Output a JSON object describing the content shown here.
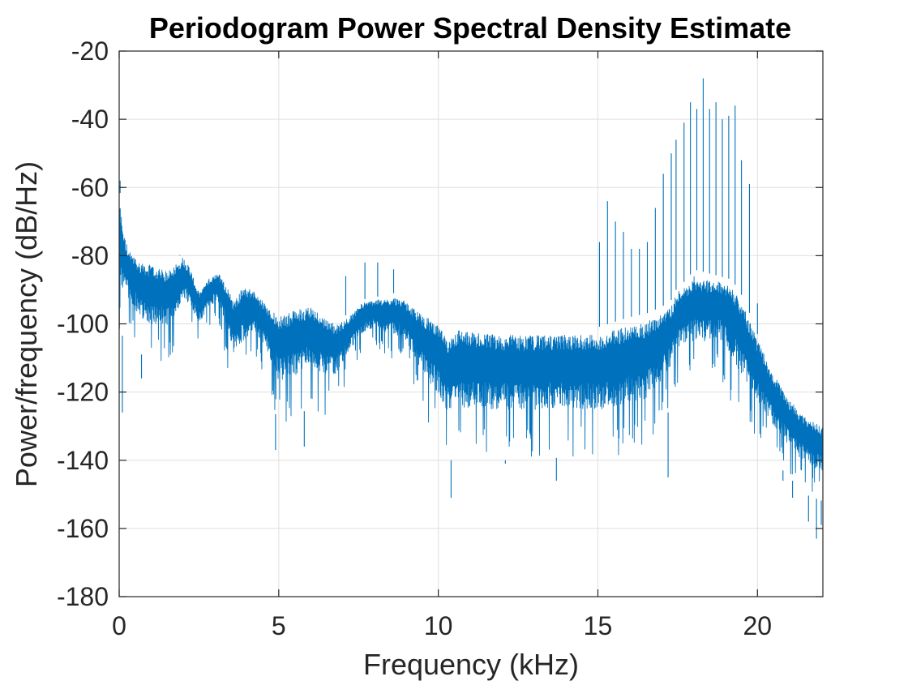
{
  "chart_data": {
    "type": "line",
    "title": "Periodogram Power Spectral Density Estimate",
    "xlabel": "Frequency (kHz)",
    "ylabel": "Power/frequency (dB/Hz)",
    "xlim": [
      0,
      22.05
    ],
    "ylim": [
      -180,
      -20
    ],
    "xticks": [
      0,
      5,
      10,
      15,
      20
    ],
    "xtick_labels": [
      "0",
      "5",
      "10",
      "15",
      "20"
    ],
    "yticks": [
      -180,
      -160,
      -140,
      -120,
      -100,
      -80,
      -60,
      -40,
      -20
    ],
    "ytick_labels": [
      "-180",
      "-160",
      "-140",
      "-120",
      "-100",
      "-80",
      "-60",
      "-40",
      "-20"
    ],
    "grid": true,
    "colors": {
      "series": "#0072BD",
      "axes": "#262626",
      "grid": "#dfdfdf"
    },
    "series": [
      {
        "envelope_x": [
          0,
          0.05,
          0.15,
          0.3,
          0.6,
          1.0,
          1.5,
          2.0,
          2.2,
          2.5,
          2.8,
          3.1,
          3.4,
          3.6,
          3.9,
          4.2,
          4.6,
          5.0,
          5.5,
          6.0,
          6.4,
          6.8,
          7.2,
          7.6,
          8.0,
          8.3,
          8.6,
          8.9,
          9.2,
          9.6,
          10.0,
          10.3,
          10.6,
          11.0,
          12.0,
          13.0,
          14.0,
          15.0,
          16.0,
          16.5,
          17.0,
          17.3,
          17.5,
          17.8,
          18.0,
          18.4,
          18.8,
          19.2,
          19.6,
          20.0,
          20.5,
          21.0,
          21.5,
          22.05
        ],
        "envelope_hi": [
          -58,
          -64,
          -72,
          -77,
          -80,
          -81,
          -83,
          -79,
          -82,
          -90,
          -86,
          -84,
          -88,
          -92,
          -87,
          -89,
          -93,
          -96,
          -94,
          -93,
          -96,
          -99,
          -97,
          -93,
          -92,
          -92,
          -91,
          -92,
          -94,
          -96,
          -98,
          -103,
          -99,
          -100,
          -101,
          -101,
          -101,
          -101,
          -98,
          -97,
          -95,
          -93,
          -89,
          -87,
          -84,
          -85,
          -86,
          -87,
          -93,
          -103,
          -113,
          -121,
          -126,
          -129
        ],
        "envelope_lo": [
          -132,
          -105,
          -102,
          -103,
          -108,
          -112,
          -112,
          -102,
          -101,
          -106,
          -101,
          -99,
          -113,
          -119,
          -116,
          -110,
          -116,
          -130,
          -128,
          -124,
          -127,
          -124,
          -115,
          -109,
          -107,
          -109,
          -111,
          -110,
          -118,
          -128,
          -134,
          -140,
          -140,
          -140,
          -140,
          -140,
          -139,
          -140,
          -139,
          -137,
          -130,
          -124,
          -118,
          -117,
          -118,
          -118,
          -115,
          -124,
          -131,
          -134,
          -140,
          -145,
          -150,
          -152
        ],
        "peaks": [
          {
            "x": 0.03,
            "y": -58
          },
          {
            "x": 1.9,
            "y": -80
          },
          {
            "x": 7.1,
            "y": -86
          },
          {
            "x": 7.7,
            "y": -82
          },
          {
            "x": 8.1,
            "y": -82
          },
          {
            "x": 8.6,
            "y": -84
          },
          {
            "x": 15.05,
            "y": -76
          },
          {
            "x": 15.3,
            "y": -64
          },
          {
            "x": 15.55,
            "y": -70
          },
          {
            "x": 15.8,
            "y": -73
          },
          {
            "x": 16.05,
            "y": -78
          },
          {
            "x": 16.3,
            "y": -78
          },
          {
            "x": 16.55,
            "y": -76
          },
          {
            "x": 16.8,
            "y": -66
          },
          {
            "x": 17.05,
            "y": -56
          },
          {
            "x": 17.3,
            "y": -50
          },
          {
            "x": 17.45,
            "y": -46
          },
          {
            "x": 17.7,
            "y": -41
          },
          {
            "x": 17.9,
            "y": -35
          },
          {
            "x": 18.1,
            "y": -37
          },
          {
            "x": 18.3,
            "y": -28
          },
          {
            "x": 18.5,
            "y": -37
          },
          {
            "x": 18.7,
            "y": -35
          },
          {
            "x": 18.9,
            "y": -40
          },
          {
            "x": 19.1,
            "y": -39
          },
          {
            "x": 19.3,
            "y": -36
          },
          {
            "x": 19.5,
            "y": -52
          },
          {
            "x": 19.75,
            "y": -59
          },
          {
            "x": 20.0,
            "y": -94
          }
        ],
        "troughs": [
          {
            "x": 0.1,
            "y": -126
          },
          {
            "x": 0.7,
            "y": -116
          },
          {
            "x": 4.9,
            "y": -137
          },
          {
            "x": 5.8,
            "y": -136
          },
          {
            "x": 10.4,
            "y": -151
          },
          {
            "x": 12.1,
            "y": -141
          },
          {
            "x": 13.7,
            "y": -146
          },
          {
            "x": 17.2,
            "y": -145
          },
          {
            "x": 20.8,
            "y": -146
          },
          {
            "x": 21.1,
            "y": -151
          },
          {
            "x": 21.6,
            "y": -158
          },
          {
            "x": 21.85,
            "y": -163
          },
          {
            "x": 22.0,
            "y": -159
          }
        ]
      }
    ]
  }
}
